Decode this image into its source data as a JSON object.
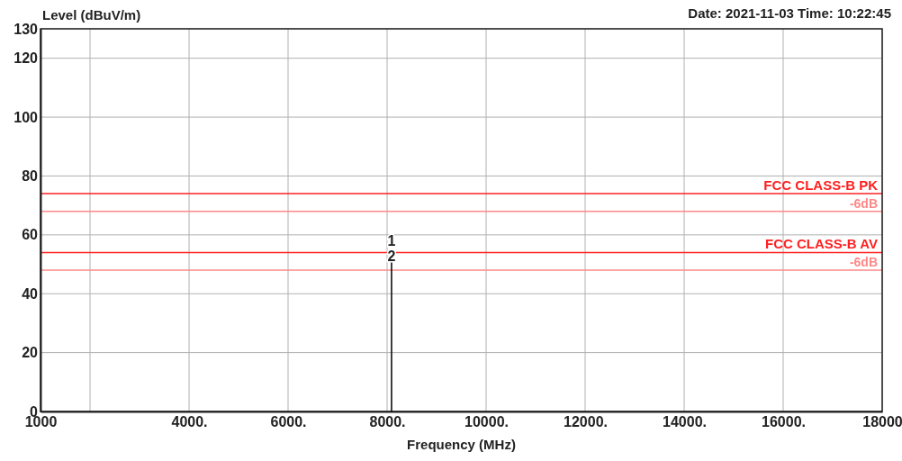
{
  "chart_data": {
    "type": "line",
    "xlabel": "Frequency (MHz)",
    "ylabel": "Level (dBuV/m)",
    "annotations": [
      "Date: 2021-11-03  Time: 10:22:45",
      {
        "text": "1",
        "x": 8090,
        "y": 55
      },
      {
        "text": "2",
        "x": 8090,
        "y": 50
      }
    ],
    "series": [
      {
        "color": "#000000",
        "x": [
          8090,
          8090
        ],
        "values": [
          0,
          55
        ]
      }
    ],
    "xlim": [
      1000,
      18000
    ],
    "xticks": [
      {
        "value": 1000,
        "label": "1000"
      },
      {
        "value": 2000,
        "label": null
      },
      {
        "value": 4000,
        "label": "4000."
      },
      {
        "value": 6000,
        "label": "6000."
      },
      {
        "value": 8000,
        "label": "8000."
      },
      {
        "value": 10000,
        "label": "10000."
      },
      {
        "value": 12000,
        "label": "12000."
      },
      {
        "value": 14000,
        "label": "14000."
      },
      {
        "value": 16000,
        "label": "16000."
      },
      {
        "value": 18000,
        "label": "18000"
      }
    ],
    "ylim": [
      0,
      130
    ],
    "yticks": [
      0,
      20,
      40,
      60,
      80,
      100,
      120,
      130
    ],
    "ref_lines": [
      {
        "axis": "y",
        "value": 74,
        "label": "FCC CLASS-B PK",
        "color": "#ff2020"
      },
      {
        "axis": "y",
        "value": 68,
        "label": "-6dB",
        "color": "#ff8888"
      },
      {
        "axis": "y",
        "value": 54,
        "label": "FCC CLASS-B AV",
        "color": "#ff2020"
      },
      {
        "axis": "y",
        "value": 48,
        "label": "-6dB",
        "color": "#ff8888"
      }
    ],
    "grid": true,
    "marker": "none",
    "line_style": "solid"
  }
}
